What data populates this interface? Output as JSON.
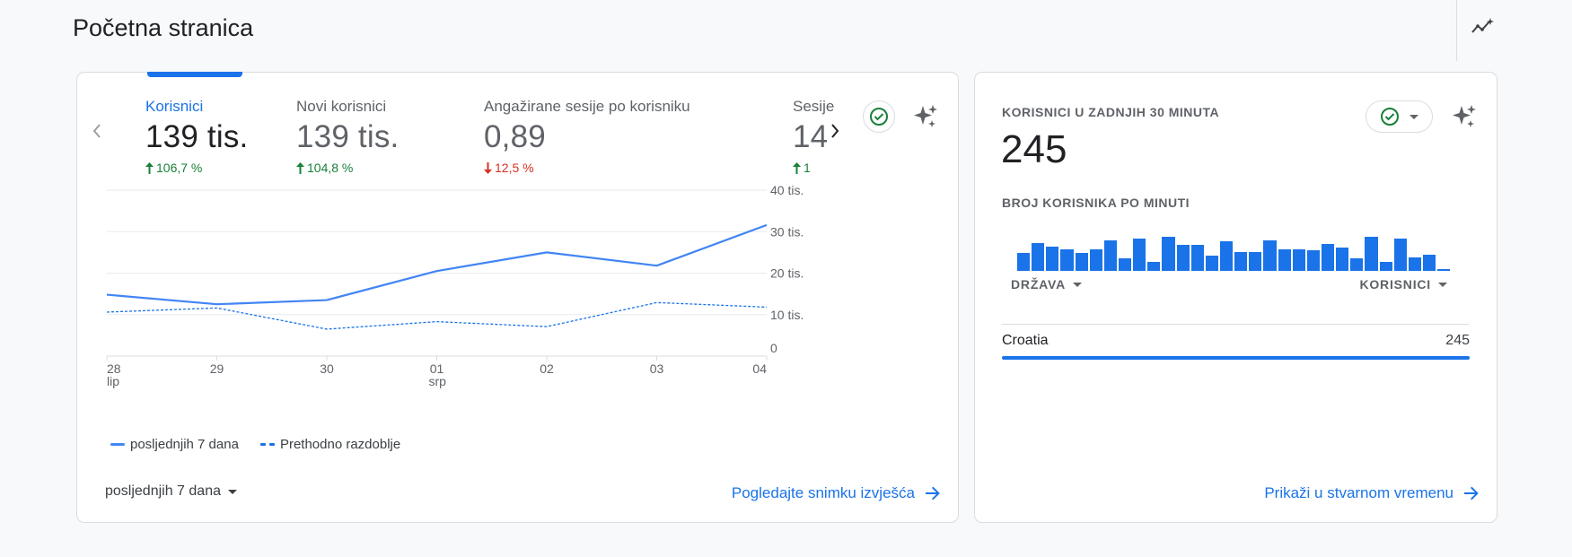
{
  "page": {
    "title": "Početna stranica"
  },
  "icons": {
    "insights": "trend-sparkle-icon",
    "prev": "chevron-left-icon",
    "next": "chevron-right-icon",
    "check": "check-circle-icon",
    "sparkle": "sparkle-icon",
    "arrow": "arrow-right-icon",
    "caret": "caret-down-icon"
  },
  "colors": {
    "accent": "#1a73e8",
    "line": "#4285f4",
    "up": "#188038",
    "down": "#d93025"
  },
  "metrics": [
    {
      "label": "Korisnici",
      "value": "139 tis.",
      "change": "106,7 %",
      "direction": "up",
      "active": true
    },
    {
      "label": "Novi korisnici",
      "value": "139 tis.",
      "change": "104,8 %",
      "direction": "up",
      "active": false
    },
    {
      "label": "Angažirane sesije po korisniku",
      "value": "0,89",
      "change": "12,5 %",
      "direction": "down",
      "active": false
    },
    {
      "label": "Sesije",
      "value": "14",
      "change": "1",
      "direction": "up",
      "active": false
    }
  ],
  "chart_data": {
    "type": "line",
    "x": [
      "28",
      "29",
      "30",
      "01",
      "02",
      "03",
      "04"
    ],
    "x_sublabels": [
      "lip",
      "",
      "",
      "srp",
      "",
      "",
      ""
    ],
    "y_ticks": [
      "40 tis.",
      "30 tis.",
      "20 tis.",
      "10 tis.",
      "0"
    ],
    "ylim": [
      0,
      40000
    ],
    "series": [
      {
        "name": "posljednjih 7 dana",
        "style": "solid",
        "values": [
          14800,
          12500,
          13500,
          20500,
          25000,
          21800,
          31600
        ]
      },
      {
        "name": "Prethodno razdoblje",
        "style": "dashed",
        "values": [
          10600,
          11600,
          6500,
          8300,
          7100,
          12900,
          11800
        ]
      }
    ],
    "legend": "bottom-left",
    "grid": true
  },
  "date_range": {
    "label": "posljednjih 7 dana"
  },
  "main_link": {
    "label": "Pogledajte snimku izvješća"
  },
  "realtime": {
    "title": "KORISNICI U ZADNJIH 30 MINUTA",
    "value": "245",
    "subtitle": "BROJ KORISNIKA PO MINUTI",
    "bars": [
      0.44,
      0.68,
      0.59,
      0.52,
      0.44,
      0.52,
      0.73,
      0.3,
      0.78,
      0.22,
      0.83,
      0.64,
      0.64,
      0.37,
      0.72,
      0.46,
      0.46,
      0.73,
      0.52,
      0.52,
      0.5,
      0.66,
      0.56,
      0.3,
      0.83,
      0.22,
      0.78,
      0.32,
      0.4,
      0.04
    ],
    "columns": {
      "country": "DRŽAVA",
      "users": "KORISNICI"
    },
    "rows": [
      {
        "country": "Croatia",
        "users": "245"
      }
    ],
    "link": "Prikaži u stvarnom vremenu"
  }
}
